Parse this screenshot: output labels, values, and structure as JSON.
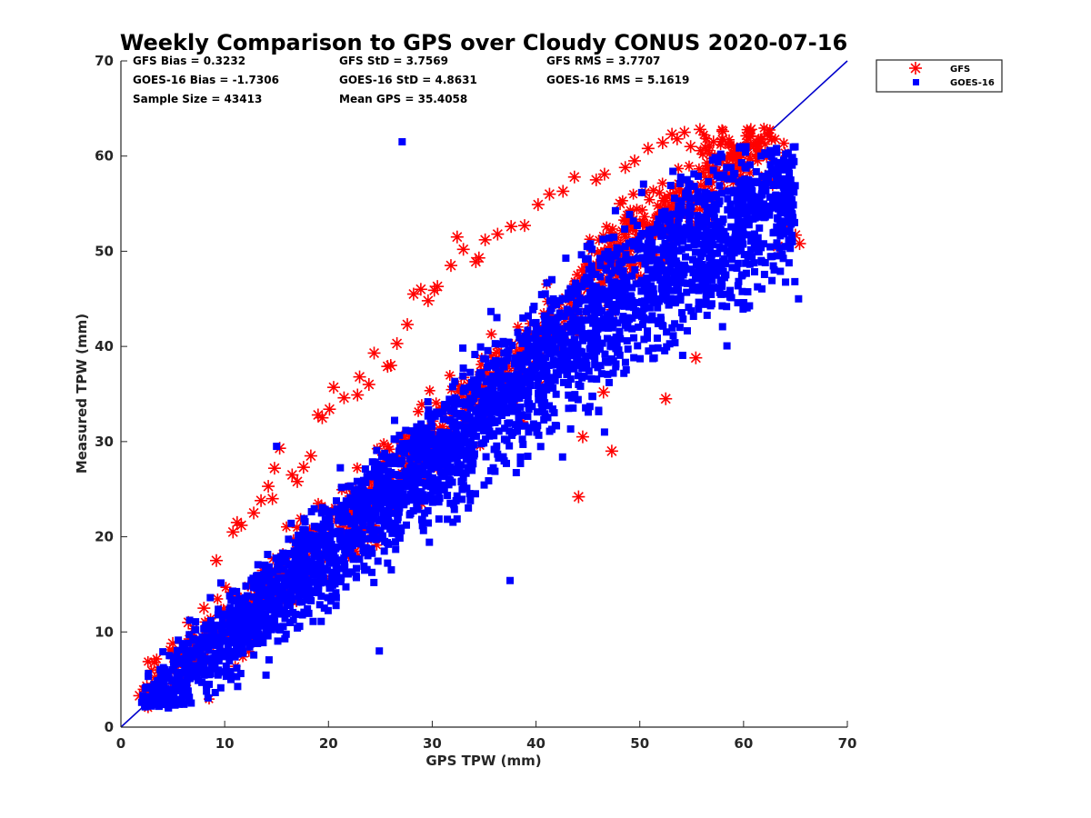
{
  "chart_data": {
    "type": "scatter",
    "title": "Weekly Comparison to GPS over Cloudy CONUS 2020-07-16",
    "xlabel": "GPS TPW (mm)",
    "ylabel": "Measured TPW (mm)",
    "xlim": [
      0,
      70
    ],
    "ylim": [
      0,
      70
    ],
    "xticks": [
      "0",
      "10",
      "20",
      "30",
      "40",
      "50",
      "60",
      "70"
    ],
    "yticks": [
      "0",
      "10",
      "20",
      "30",
      "40",
      "50",
      "60",
      "70"
    ],
    "grid": false,
    "legend_position": "outside-top-right",
    "reference_line": {
      "x": [
        0,
        70
      ],
      "y": [
        0,
        70
      ],
      "color": "#0000cc"
    },
    "stats": [
      [
        "GFS Bias = 0.3232",
        "GFS StD = 3.7569",
        "GFS RMS = 3.7707"
      ],
      [
        "GOES-16 Bias = -1.7306",
        "GOES-16 StD = 4.8631",
        "GOES-16 RMS = 5.1619"
      ],
      [
        "Sample Size = 43413",
        "Mean GPS = 35.4058",
        ""
      ]
    ],
    "series": [
      {
        "name": "GFS",
        "marker": "asterisk",
        "color": "#ff0000",
        "x": [
          1.8,
          2.5,
          3.2,
          3.6,
          4.1,
          5.0,
          6.5,
          8.0,
          9.2,
          10.8,
          11.2,
          11.6,
          12.8,
          13.5,
          14.2,
          14.6,
          15.3,
          16.5,
          17.6,
          18.3,
          19.0,
          19.4,
          20.5,
          21.5,
          22.8,
          23.9,
          24.4,
          25.7,
          26.6,
          27.6,
          28.2,
          28.9,
          29.6,
          30.5,
          31.8,
          32.4,
          33.0,
          34.2,
          35.1,
          36.3,
          37.6,
          38.9,
          40.2,
          41.3,
          42.6,
          43.7,
          44.1,
          45.8,
          46.6,
          47.3,
          48.6,
          49.5,
          50.8,
          52.2,
          53.1,
          53.6,
          54.3,
          54.9,
          55.4,
          55.8,
          56.3,
          57.1,
          58.0,
          58.9,
          59.8,
          60.7,
          61.4,
          62.1,
          62.8,
          63.3,
          64.2,
          65.0,
          65.4,
          14.8,
          20.1,
          23.0,
          26.0,
          34.5,
          40.5,
          46.5,
          17.0,
          30.2,
          48.1,
          52.5,
          44.5
        ],
        "y": [
          3.3,
          4.3,
          6.8,
          6.0,
          5.5,
          8.8,
          11.0,
          12.5,
          17.5,
          20.5,
          21.5,
          21.2,
          22.5,
          23.8,
          25.3,
          24.0,
          29.3,
          26.5,
          27.3,
          28.5,
          32.8,
          32.5,
          35.7,
          34.6,
          34.9,
          36.0,
          39.3,
          37.9,
          40.3,
          42.3,
          45.5,
          46.0,
          44.8,
          46.3,
          48.5,
          51.5,
          50.2,
          48.9,
          51.2,
          51.8,
          52.6,
          52.7,
          54.9,
          56.0,
          56.3,
          57.8,
          24.2,
          57.5,
          58.1,
          29.0,
          58.8,
          59.5,
          60.8,
          61.4,
          62.3,
          61.8,
          62.5,
          61.0,
          38.8,
          62.8,
          60.9,
          61.5,
          62.6,
          60.0,
          59.3,
          62.8,
          60.2,
          57.9,
          57.0,
          50.5,
          52.6,
          51.7,
          50.8,
          27.2,
          33.4,
          36.8,
          38.0,
          49.3,
          41.2,
          35.2,
          25.8,
          45.9,
          55.0,
          34.5,
          30.5
        ]
      },
      {
        "name": "GOES-16",
        "marker": "square",
        "color": "#0000ff",
        "x": [
          2.0,
          2.4,
          3.1,
          3.8,
          4.5,
          5.2,
          6.0,
          6.8,
          7.5,
          8.3,
          9.0,
          9.8,
          10.5,
          11.3,
          12.0,
          12.8,
          13.6,
          14.4,
          15.1,
          15.9,
          16.7,
          17.4,
          18.2,
          19.0,
          19.8,
          20.5,
          21.3,
          22.1,
          22.9,
          23.6,
          24.4,
          25.2,
          26.0,
          26.8,
          27.5,
          28.3,
          29.1,
          29.9,
          30.6,
          31.4,
          32.2,
          33.0,
          33.8,
          34.5,
          35.3,
          36.1,
          36.9,
          37.7,
          38.4,
          39.2,
          40.0,
          40.8,
          41.5,
          42.3,
          43.1,
          43.9,
          44.7,
          45.4,
          46.2,
          47.0,
          47.8,
          48.6,
          49.3,
          50.1,
          50.9,
          51.7,
          52.4,
          53.2,
          54.0,
          54.8,
          55.6,
          56.3,
          57.1,
          57.9,
          58.7,
          59.4,
          60.2,
          61.0,
          61.8,
          62.5,
          63.3,
          64.0,
          65.3,
          37.5,
          44.1,
          46.6,
          24.9,
          10.6,
          15.0,
          27.1
        ],
        "y": [
          2.6,
          3.2,
          3.8,
          5.0,
          5.8,
          6.6,
          7.2,
          7.9,
          8.8,
          9.5,
          10.5,
          11.2,
          12.0,
          13.0,
          13.6,
          14.8,
          15.3,
          16.2,
          17.0,
          17.8,
          18.5,
          19.4,
          20.2,
          21.0,
          21.8,
          22.6,
          23.3,
          24.1,
          25.0,
          25.7,
          26.6,
          27.3,
          28.2,
          29.0,
          29.8,
          30.6,
          31.4,
          32.2,
          33.0,
          33.8,
          34.6,
          35.4,
          36.2,
          37.0,
          37.8,
          38.5,
          39.3,
          40.1,
          40.9,
          41.7,
          42.5,
          43.2,
          44.0,
          44.8,
          45.6,
          46.3,
          47.0,
          47.8,
          48.5,
          49.2,
          49.8,
          50.5,
          51.0,
          51.6,
          52.2,
          52.8,
          53.3,
          53.9,
          54.3,
          54.8,
          55.2,
          55.6,
          55.9,
          56.1,
          56.3,
          56.4,
          56.0,
          55.5,
          54.8,
          53.8,
          52.2,
          50.5,
          45.0,
          15.4,
          36.0,
          31.0,
          8.0,
          5.0,
          29.5,
          61.5
        ]
      }
    ]
  }
}
